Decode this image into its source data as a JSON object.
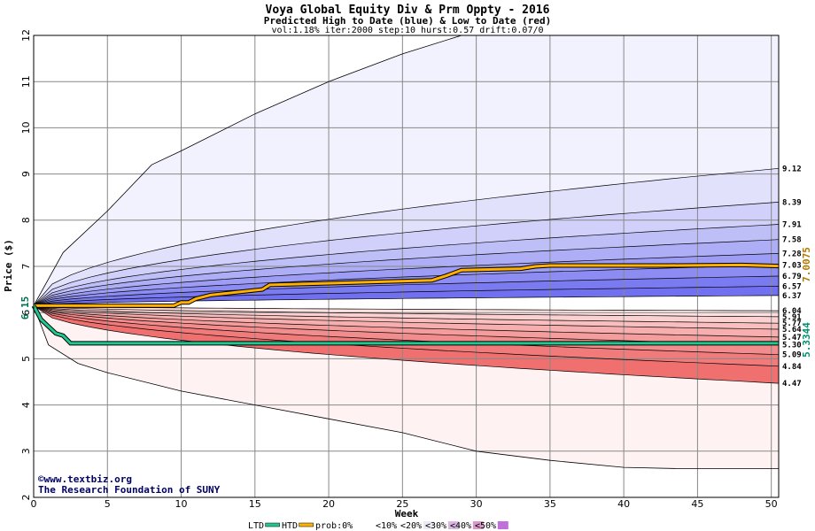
{
  "chart_data": {
    "type": "area",
    "title": "Voya Global Equity Div & Prm Oppty  - 2016",
    "subtitle": "Predicted High to Date (blue) &  Low to Date (red)",
    "params": "vol:1.18% iter:2000 step:10 hurst:0.57 drift:0.07/0",
    "xlabel": "Week",
    "ylabel": "Price ($)",
    "xlim": [
      0,
      50.5
    ],
    "ylim": [
      2,
      12
    ],
    "x_ticks": [
      "0",
      "5",
      "10",
      "15",
      "20",
      "25",
      "30",
      "35",
      "40",
      "45",
      "50"
    ],
    "y_ticks": [
      "2",
      "3",
      "4",
      "5",
      "6",
      "7",
      "8",
      "9",
      "10",
      "11",
      "12"
    ],
    "start_price": 6.15,
    "start_price_label": "6.15",
    "grid": true,
    "colors": {
      "blue_band_light": "#f2f2fe",
      "blue_band_dark": "#7070f0",
      "red_band_light": "#fff2f2",
      "red_band_dark": "#f07070",
      "htd_line": "#ffb000",
      "ltd_line": "#20c890",
      "htd_label": "#b07800",
      "ltd_label": "#009070"
    },
    "high_percentile_endpoints": [
      {
        "label": "9.12",
        "value": 9.12
      },
      {
        "label": "8.39",
        "value": 8.39
      },
      {
        "label": "7.91",
        "value": 7.91
      },
      {
        "label": "7.58",
        "value": 7.58
      },
      {
        "label": "7.28",
        "value": 7.28
      },
      {
        "label": "7.03",
        "value": 7.03
      },
      {
        "label": "6.79",
        "value": 6.79
      },
      {
        "label": "6.57",
        "value": 6.57
      },
      {
        "label": "6.37",
        "value": 6.37
      }
    ],
    "low_percentile_endpoints": [
      {
        "label": "6.04",
        "value": 6.04
      },
      {
        "label": "5.91",
        "value": 5.91
      },
      {
        "label": "5.77",
        "value": 5.77
      },
      {
        "label": "5.64",
        "value": 5.64
      },
      {
        "label": "5.47",
        "value": 5.47
      },
      {
        "label": "5.30",
        "value": 5.3
      },
      {
        "label": "5.09",
        "value": 5.09
      },
      {
        "label": "4.84",
        "value": 4.84
      },
      {
        "label": "4.47",
        "value": 4.47
      }
    ],
    "high_extreme_path": {
      "x": [
        0,
        2,
        5,
        8,
        10,
        15,
        20,
        25,
        29,
        30,
        50.5
      ],
      "y": [
        6.15,
        7.3,
        8.2,
        9.2,
        9.5,
        10.3,
        11.0,
        11.6,
        12.0,
        12.0,
        12.0
      ]
    },
    "low_extreme_path": {
      "x": [
        0,
        1,
        3,
        5,
        10,
        15,
        20,
        25,
        30,
        35,
        40,
        44,
        50.5
      ],
      "y": [
        6.15,
        5.3,
        4.9,
        4.7,
        4.3,
        4.0,
        3.7,
        3.4,
        3.0,
        2.8,
        2.65,
        2.62,
        2.62
      ]
    },
    "series": [
      {
        "name": "HTD",
        "x": [
          0,
          9.5,
          10,
          10.5,
          11,
          12,
          15.5,
          16,
          27,
          28,
          29,
          33,
          34,
          35,
          43,
          48,
          50.5
        ],
        "y": [
          6.15,
          6.15,
          6.22,
          6.22,
          6.3,
          6.38,
          6.5,
          6.6,
          6.7,
          6.8,
          6.92,
          6.95,
          7.0,
          7.02,
          7.02,
          7.03,
          7.0075
        ]
      },
      {
        "name": "LTD",
        "x": [
          0,
          0.5,
          1,
          1.5,
          2,
          2.5,
          50.5
        ],
        "y": [
          6.15,
          5.85,
          5.7,
          5.55,
          5.5,
          5.3344,
          5.3344
        ]
      }
    ],
    "htd_final_label": "7.0075",
    "ltd_final_label": "5.3344",
    "legend": {
      "position": "bottom",
      "items": [
        {
          "label": "LTD",
          "swatch": "#20c890"
        },
        {
          "label": "HTD",
          "swatch": "#ffb000"
        },
        {
          "label": "prob:0%",
          "swatch": ""
        },
        {
          "label": "<10%",
          "swatch": "#ffffff"
        },
        {
          "label": "<20%",
          "swatch": "#ece8f4"
        },
        {
          "label": "<30%",
          "swatch": "#d8b8e0"
        },
        {
          "label": "<40%",
          "swatch": "#d898c8"
        },
        {
          "label": "<50%",
          "swatch": "#c070d8"
        }
      ]
    },
    "credits": [
      "©www.textbiz.org",
      "The Research Foundation of SUNY"
    ]
  }
}
